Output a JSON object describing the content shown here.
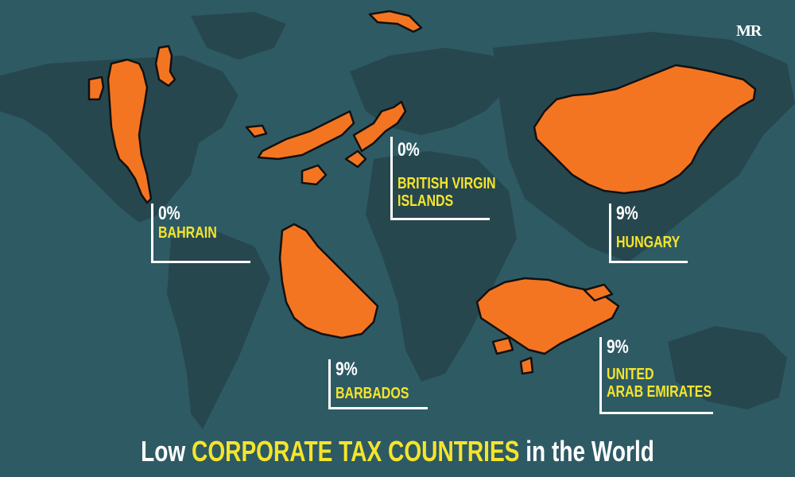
{
  "logo": "MR",
  "title": {
    "prefix": "Low",
    "highlight": "CORPORATE TAX COUNTRIES",
    "suffix": "in the World"
  },
  "countries": [
    {
      "name": "BAHRAIN",
      "rate": "0%"
    },
    {
      "name_line1": "BRITISH VIRGIN",
      "name_line2": "ISLANDS",
      "rate": "0%"
    },
    {
      "name": "HUNGARY",
      "rate": "9%"
    },
    {
      "name": "BARBADOS",
      "rate": "9%"
    },
    {
      "name_line1": "UNITED",
      "name_line2": "ARAB EMIRATES",
      "rate": "9%"
    }
  ],
  "colors": {
    "background": "#2e5a64",
    "world_silhouette": "#27474f",
    "country_fill": "#f47521",
    "label_yellow": "#f5e52a"
  }
}
